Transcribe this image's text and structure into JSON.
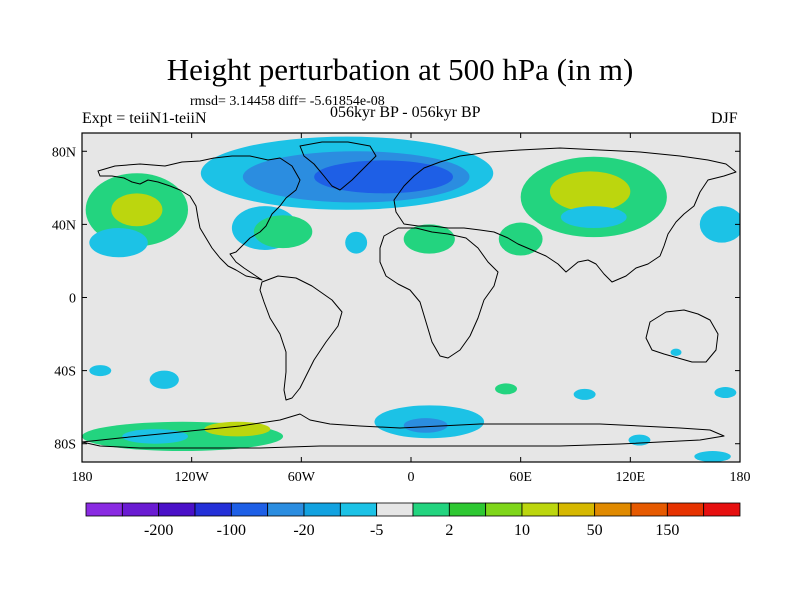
{
  "title": "Height perturbation at 500 hPa (in m)",
  "stats": "rmsd= 3.14458 diff= -5.61854e-08",
  "experiment": "Expt = teiiN1-teiiN",
  "period": "056kyr BP - 056kyr BP",
  "season": "DJF",
  "lat_ticks": [
    {
      "label": "80N",
      "value": 80
    },
    {
      "label": "40N",
      "value": 40
    },
    {
      "label": "0",
      "value": 0
    },
    {
      "label": "40S",
      "value": -40
    },
    {
      "label": "80S",
      "value": -80
    }
  ],
  "lon_ticks": [
    {
      "label": "180",
      "value": -180
    },
    {
      "label": "120W",
      "value": -120
    },
    {
      "label": "60W",
      "value": -60
    },
    {
      "label": "0",
      "value": 0
    },
    {
      "label": "60E",
      "value": 60
    },
    {
      "label": "120E",
      "value": 120
    },
    {
      "label": "180",
      "value": 180
    }
  ],
  "colorbar": {
    "colors": [
      "#8a2be2",
      "#6a1bd2",
      "#4a10c8",
      "#2430d8",
      "#1e5fe6",
      "#2b8de0",
      "#12a2e0",
      "#1cc2e6",
      "#e6e6e6",
      "#23d47f",
      "#2ec832",
      "#7fd61a",
      "#bcd60e",
      "#d6b800",
      "#e08a00",
      "#e65a00",
      "#e63200",
      "#e60f0f"
    ],
    "tick_labels": [
      {
        "label": "-200",
        "index": 1
      },
      {
        "label": "-100",
        "index": 3
      },
      {
        "label": "-20",
        "index": 5
      },
      {
        "label": "-5",
        "index": 7
      },
      {
        "label": "2",
        "index": 9
      },
      {
        "label": "10",
        "index": 11
      },
      {
        "label": "50",
        "index": 13
      },
      {
        "label": "150",
        "index": 15
      }
    ]
  },
  "anomalies": [
    {
      "lon": -150,
      "lat": 48,
      "rx": 28,
      "ry": 20,
      "level": "positive"
    },
    {
      "lon": -150,
      "lat": 48,
      "rx": 14,
      "ry": 9,
      "level": "positive_strong"
    },
    {
      "lon": -160,
      "lat": 30,
      "rx": 16,
      "ry": 8,
      "level": "negative_light"
    },
    {
      "lon": -35,
      "lat": 68,
      "rx": 80,
      "ry": 20,
      "level": "negative_light"
    },
    {
      "lon": -30,
      "lat": 66,
      "rx": 62,
      "ry": 14,
      "level": "negative"
    },
    {
      "lon": -15,
      "lat": 66,
      "rx": 38,
      "ry": 9,
      "level": "negative_strong"
    },
    {
      "lon": -80,
      "lat": 38,
      "rx": 18,
      "ry": 12,
      "level": "negative_light"
    },
    {
      "lon": -70,
      "lat": 36,
      "rx": 16,
      "ry": 9,
      "level": "positive"
    },
    {
      "lon": -30,
      "lat": 30,
      "rx": 6,
      "ry": 6,
      "level": "negative_light"
    },
    {
      "lon": 10,
      "lat": 32,
      "rx": 14,
      "ry": 8,
      "level": "positive"
    },
    {
      "lon": 100,
      "lat": 55,
      "rx": 40,
      "ry": 22,
      "level": "positive"
    },
    {
      "lon": 98,
      "lat": 58,
      "rx": 22,
      "ry": 11,
      "level": "positive_strong"
    },
    {
      "lon": 60,
      "lat": 32,
      "rx": 12,
      "ry": 9,
      "level": "positive"
    },
    {
      "lon": 100,
      "lat": 44,
      "rx": 18,
      "ry": 6,
      "level": "negative_light"
    },
    {
      "lon": 170,
      "lat": 40,
      "rx": 12,
      "ry": 10,
      "level": "negative_light"
    },
    {
      "lon": -125,
      "lat": -76,
      "rx": 55,
      "ry": 8,
      "level": "positive"
    },
    {
      "lon": -95,
      "lat": -72,
      "rx": 18,
      "ry": 4,
      "level": "positive_strong"
    },
    {
      "lon": -140,
      "lat": -76,
      "rx": 18,
      "ry": 4,
      "level": "negative_light"
    },
    {
      "lon": 10,
      "lat": -68,
      "rx": 30,
      "ry": 9,
      "level": "negative_light"
    },
    {
      "lon": 8,
      "lat": -70,
      "rx": 12,
      "ry": 4,
      "level": "negative"
    },
    {
      "lon": -170,
      "lat": -40,
      "rx": 6,
      "ry": 3,
      "level": "negative_light"
    },
    {
      "lon": -135,
      "lat": -45,
      "rx": 8,
      "ry": 5,
      "level": "negative_light"
    },
    {
      "lon": 95,
      "lat": -53,
      "rx": 6,
      "ry": 3,
      "level": "negative_light"
    },
    {
      "lon": 52,
      "lat": -50,
      "rx": 6,
      "ry": 3,
      "level": "positive"
    },
    {
      "lon": 172,
      "lat": -52,
      "rx": 6,
      "ry": 3,
      "level": "negative_light"
    },
    {
      "lon": 145,
      "lat": -30,
      "rx": 3,
      "ry": 2,
      "level": "negative_light"
    },
    {
      "lon": 125,
      "lat": -78,
      "rx": 6,
      "ry": 3,
      "level": "negative_light"
    },
    {
      "lon": 165,
      "lat": -87,
      "rx": 10,
      "ry": 3,
      "level": "negative_light"
    }
  ],
  "level_colors": {
    "negative_strong": "#1e5fe6",
    "negative": "#2b8de0",
    "negative_light": "#1cc2e6",
    "positive": "#23d47f",
    "positive_strong": "#bcd60e"
  },
  "background_color": "#e6e6e6"
}
